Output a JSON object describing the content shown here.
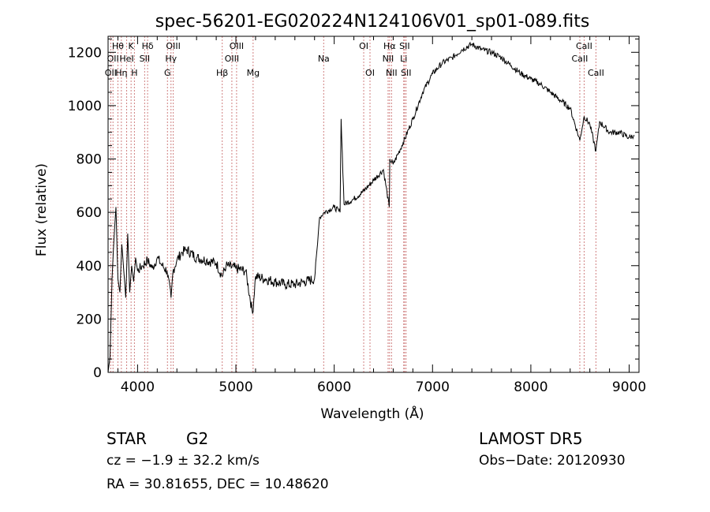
{
  "chart_data": {
    "type": "line",
    "title": "spec-56201-EG020224N124106V01_sp01-089.fits",
    "xlabel": "Wavelength (Å)",
    "ylabel": "Flux (relative)",
    "xlim": [
      3700,
      9100
    ],
    "ylim": [
      0,
      1260
    ],
    "xticks": [
      4000,
      5000,
      6000,
      7000,
      8000,
      9000
    ],
    "yticks": [
      0,
      200,
      400,
      600,
      800,
      1000,
      1200
    ],
    "grid": false,
    "series": [
      {
        "color": "#000000",
        "x": [
          3700,
          3720,
          3740,
          3760,
          3780,
          3800,
          3820,
          3840,
          3860,
          3880,
          3900,
          3920,
          3940,
          3960,
          3980,
          4000,
          4050,
          4100,
          4150,
          4200,
          4250,
          4300,
          4340,
          4360,
          4400,
          4450,
          4500,
          4600,
          4700,
          4800,
          4860,
          4900,
          5000,
          5100,
          5170,
          5200,
          5300,
          5400,
          5500,
          5600,
          5700,
          5800,
          5830,
          5850,
          5900,
          6000,
          6060,
          6070,
          6100,
          6200,
          6300,
          6400,
          6500,
          6560,
          6565,
          6600,
          6700,
          6800,
          6900,
          7000,
          7100,
          7200,
          7300,
          7400,
          7500,
          7600,
          7700,
          7800,
          7900,
          8000,
          8100,
          8200,
          8300,
          8400,
          8498,
          8542,
          8600,
          8662,
          8700,
          8800,
          8900,
          9000,
          9050
        ],
        "y": [
          0,
          60,
          350,
          500,
          620,
          350,
          300,
          480,
          380,
          280,
          520,
          300,
          400,
          340,
          430,
          380,
          400,
          420,
          390,
          430,
          400,
          380,
          280,
          380,
          420,
          450,
          460,
          430,
          420,
          410,
          360,
          400,
          390,
          380,
          220,
          360,
          350,
          340,
          330,
          330,
          340,
          350,
          480,
          580,
          600,
          620,
          600,
          950,
          630,
          650,
          680,
          720,
          760,
          620,
          800,
          780,
          860,
          950,
          1050,
          1120,
          1160,
          1180,
          1210,
          1230,
          1210,
          1200,
          1180,
          1150,
          1120,
          1100,
          1080,
          1050,
          1020,
          990,
          870,
          960,
          930,
          830,
          940,
          900,
          900,
          880,
          890
        ]
      }
    ],
    "lines": {
      "color": "#d08080",
      "items": [
        {
          "wavelength": 3727,
          "label": "OII",
          "row": 2
        },
        {
          "wavelength": 3750,
          "label": "OII",
          "row": 1
        },
        {
          "wavelength": 3800,
          "label": "Hθ",
          "row": 0
        },
        {
          "wavelength": 3835,
          "label": "Hη",
          "row": 2
        },
        {
          "wavelength": 3889,
          "label": "HeI",
          "row": 1
        },
        {
          "wavelength": 3934,
          "label": "K",
          "row": 0
        },
        {
          "wavelength": 3968,
          "label": "H",
          "row": 2
        },
        {
          "wavelength": 4072,
          "label": "SII",
          "row": 1
        },
        {
          "wavelength": 4102,
          "label": "Hδ",
          "row": 0
        },
        {
          "wavelength": 4304,
          "label": "G",
          "row": 2
        },
        {
          "wavelength": 4340,
          "label": "Hγ",
          "row": 1
        },
        {
          "wavelength": 4363,
          "label": "OIII",
          "row": 0
        },
        {
          "wavelength": 4861,
          "label": "Hβ",
          "row": 2
        },
        {
          "wavelength": 4959,
          "label": "OIII",
          "row": 1
        },
        {
          "wavelength": 5007,
          "label": "OIII",
          "row": 0
        },
        {
          "wavelength": 5175,
          "label": "Mg",
          "row": 2
        },
        {
          "wavelength": 5893,
          "label": "Na",
          "row": 1
        },
        {
          "wavelength": 6300,
          "label": "OI",
          "row": 0
        },
        {
          "wavelength": 6364,
          "label": "OI",
          "row": 2
        },
        {
          "wavelength": 6548,
          "label": "NII",
          "row": 1
        },
        {
          "wavelength": 6563,
          "label": "Hα",
          "row": 0
        },
        {
          "wavelength": 6583,
          "label": "NII",
          "row": 2
        },
        {
          "wavelength": 6707,
          "label": "Li",
          "row": 1
        },
        {
          "wavelength": 6716,
          "label": "SII",
          "row": 0
        },
        {
          "wavelength": 6731,
          "label": "SII",
          "row": 2
        },
        {
          "wavelength": 8498,
          "label": "CaII",
          "row": 1
        },
        {
          "wavelength": 8542,
          "label": "CaII",
          "row": 0
        },
        {
          "wavelength": 8662,
          "label": "CaII",
          "row": 2
        }
      ]
    }
  },
  "info": {
    "class_label": "STAR",
    "subclass": "G2",
    "cz": "cz = −1.9 ± 32.2 km/s",
    "coords": "RA =  30.81655, DEC =  10.48620",
    "survey": "LAMOST DR5",
    "obs_date": "Obs−Date: 20120930"
  }
}
